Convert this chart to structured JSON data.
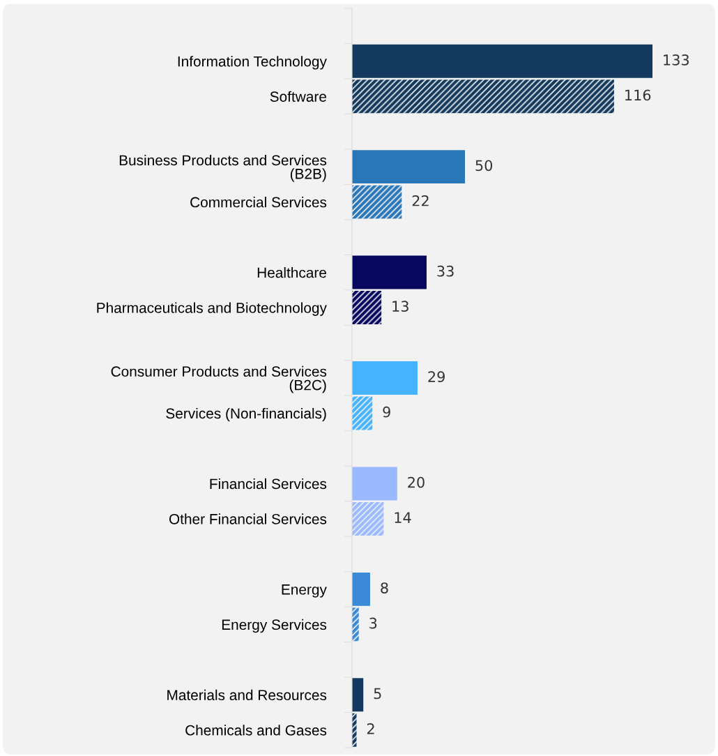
{
  "chart_data": {
    "type": "bar",
    "orientation": "horizontal",
    "data_labels": true,
    "grid": false,
    "legend": false,
    "xlim": [
      0,
      162
    ],
    "categories": [
      "Information Technology",
      "Software",
      null,
      "Business Products and Services\n(B2B)",
      "Commercial Services",
      null,
      "Healthcare",
      "Pharmaceuticals and Biotechnology",
      null,
      "Consumer Products and Services\n(B2C)",
      "Services (Non-financials)",
      null,
      "Financial Services",
      "Other Financial Services",
      null,
      "Energy",
      "Energy Services",
      null,
      "Materials and Resources",
      "Chemicals and Gases"
    ],
    "values": [
      133,
      116,
      null,
      50,
      22,
      null,
      33,
      13,
      null,
      29,
      9,
      null,
      20,
      14,
      null,
      8,
      3,
      null,
      5,
      2
    ],
    "colors": [
      "#133a5e",
      "#133a5e",
      null,
      "#2a77b8",
      "#2a77b8",
      null,
      "#07075e",
      "#07075e",
      null,
      "#45b3ff",
      "#45b3ff",
      null,
      "#9bb9ff",
      "#9bb9ff",
      null,
      "#3a8ad8",
      "#3a8ad8",
      null,
      "#133a5e",
      "#133a5e"
    ]
  }
}
